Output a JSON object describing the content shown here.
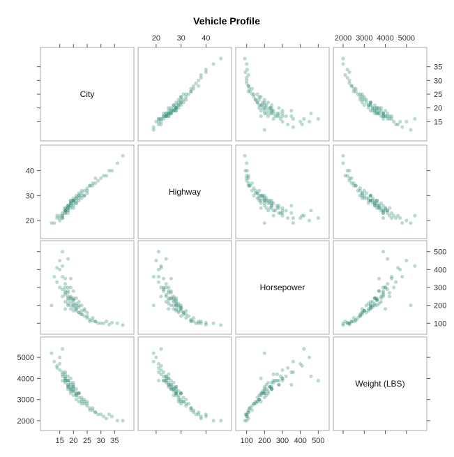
{
  "chart_data": {
    "type": "scatter",
    "title": "Vehicle Profile",
    "variables": [
      {
        "label": "City",
        "range": [
          10,
          40
        ],
        "ticks": [
          15,
          20,
          25,
          30,
          35
        ]
      },
      {
        "label": "Highway",
        "range": [
          15,
          48
        ],
        "ticks": [
          20,
          30,
          40
        ]
      },
      {
        "label": "Horsepower",
        "range": [
          70,
          530
        ],
        "ticks": [
          100,
          200,
          300,
          400,
          500
        ]
      },
      {
        "label": "Weight (LBS)",
        "range": [
          1800,
          5700
        ],
        "ticks": [
          2000,
          3000,
          4000,
          5000
        ]
      }
    ],
    "points": [
      [
        12,
        19,
        200,
        5200
      ],
      [
        13,
        19,
        360,
        4800
      ],
      [
        14,
        21,
        330,
        4500
      ],
      [
        15,
        21,
        400,
        4700
      ],
      [
        15,
        22,
        300,
        4400
      ],
      [
        16,
        21,
        360,
        4300
      ],
      [
        16,
        22,
        250,
        4200
      ],
      [
        16,
        23,
        290,
        4100
      ],
      [
        17,
        23,
        350,
        4300
      ],
      [
        17,
        24,
        300,
        4000
      ],
      [
        17,
        24,
        260,
        3900
      ],
      [
        17,
        25,
        270,
        4200
      ],
      [
        17,
        24,
        220,
        3800
      ],
      [
        18,
        24,
        250,
        3900
      ],
      [
        18,
        25,
        230,
        3600
      ],
      [
        18,
        25,
        280,
        3700
      ],
      [
        18,
        26,
        240,
        3500
      ],
      [
        18,
        26,
        200,
        3600
      ],
      [
        19,
        26,
        240,
        3500
      ],
      [
        19,
        27,
        200,
        3500
      ],
      [
        19,
        27,
        220,
        3400
      ],
      [
        19,
        27,
        250,
        3800
      ],
      [
        19,
        28,
        180,
        3300
      ],
      [
        20,
        28,
        200,
        3400
      ],
      [
        20,
        28,
        210,
        3500
      ],
      [
        20,
        28,
        170,
        3200
      ],
      [
        20,
        27,
        230,
        3600
      ],
      [
        20,
        29,
        190,
        3400
      ],
      [
        21,
        28,
        200,
        3300
      ],
      [
        21,
        29,
        210,
        3200
      ],
      [
        21,
        30,
        185,
        3300
      ],
      [
        21,
        29,
        170,
        3000
      ],
      [
        22,
        30,
        200,
        3300
      ],
      [
        22,
        31,
        160,
        3100
      ],
      [
        23,
        30,
        170,
        3000
      ],
      [
        23,
        31,
        150,
        2900
      ],
      [
        24,
        30,
        140,
        2800
      ],
      [
        24,
        32,
        170,
        3000
      ],
      [
        25,
        32,
        130,
        2700
      ],
      [
        25,
        33,
        140,
        2800
      ],
      [
        26,
        34,
        120,
        2600
      ],
      [
        26,
        34,
        110,
        2500
      ],
      [
        27,
        35,
        130,
        2500
      ],
      [
        28,
        35,
        110,
        2400
      ],
      [
        28,
        37,
        110,
        2400
      ],
      [
        29,
        36,
        100,
        2300
      ],
      [
        30,
        37,
        100,
        2300
      ],
      [
        31,
        38,
        100,
        2200
      ],
      [
        32,
        38,
        110,
        2100
      ],
      [
        33,
        40,
        93,
        2300
      ],
      [
        34,
        40,
        103,
        2200
      ],
      [
        36,
        43,
        100,
        2000
      ],
      [
        38,
        46,
        90,
        2000
      ],
      [
        14,
        22,
        410,
        4600
      ],
      [
        15,
        20,
        450,
        5000
      ],
      [
        16,
        22,
        420,
        5400
      ],
      [
        17,
        24,
        320,
        4100
      ],
      [
        18,
        26,
        270,
        3900
      ],
      [
        19,
        25,
        300,
        4000
      ],
      [
        20,
        26,
        280,
        3700
      ],
      [
        20,
        25,
        240,
        3800
      ],
      [
        21,
        27,
        240,
        3500
      ],
      [
        22,
        28,
        220,
        3300
      ],
      [
        23,
        29,
        200,
        3100
      ],
      [
        24,
        30,
        180,
        2900
      ],
      [
        16,
        21,
        500,
        3900
      ],
      [
        18,
        24,
        460,
        4100
      ],
      [
        19,
        26,
        350,
        3700
      ],
      [
        22,
        30,
        190,
        3300
      ],
      [
        20,
        28,
        230,
        3600
      ],
      [
        17,
        25,
        180,
        4000
      ],
      [
        18,
        23,
        300,
        3900
      ],
      [
        21,
        27,
        180,
        3200
      ],
      [
        22,
        29,
        160,
        2900
      ],
      [
        23,
        32,
        150,
        2800
      ],
      [
        25,
        31,
        160,
        2900
      ],
      [
        27,
        34,
        115,
        2600
      ],
      [
        19,
        28,
        240,
        3600
      ],
      [
        18,
        25,
        210,
        3700
      ],
      [
        17,
        23,
        280,
        3900
      ]
    ]
  }
}
